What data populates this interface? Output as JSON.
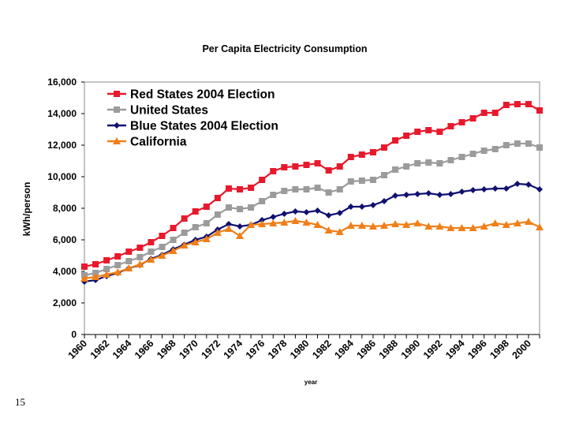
{
  "page": {
    "slide_number": "15"
  },
  "chart_data": {
    "type": "line",
    "title": "Per Capita Electricity Consumption",
    "xlabel": "year",
    "ylabel": "kWh/person",
    "xlim": [
      1960,
      2001
    ],
    "ylim": [
      0,
      16000
    ],
    "y_ticks": [
      0,
      2000,
      4000,
      6000,
      8000,
      10000,
      12000,
      14000,
      16000
    ],
    "y_tick_labels": [
      "0",
      "2,000",
      "4,000",
      "6,000",
      "8,000",
      "10,000",
      "12,000",
      "14,000",
      "16,000"
    ],
    "x_ticks": [
      1960,
      1962,
      1964,
      1966,
      1968,
      1970,
      1972,
      1974,
      1976,
      1978,
      1980,
      1982,
      1984,
      1986,
      1988,
      1990,
      1992,
      1994,
      1996,
      1998,
      2000
    ],
    "x_tick_labels": [
      "1960",
      "1962",
      "1964",
      "1966",
      "1968",
      "1970",
      "1972",
      "1974",
      "1976",
      "1978",
      "1980",
      "1982",
      "1984",
      "1986",
      "1988",
      "1990",
      "1992",
      "1994",
      "1996",
      "1998",
      "2000"
    ],
    "legend_position": "top-left",
    "x": [
      1960,
      1961,
      1962,
      1963,
      1964,
      1965,
      1966,
      1967,
      1968,
      1969,
      1970,
      1971,
      1972,
      1973,
      1974,
      1975,
      1976,
      1977,
      1978,
      1979,
      1980,
      1981,
      1982,
      1983,
      1984,
      1985,
      1986,
      1987,
      1988,
      1989,
      1990,
      1991,
      1992,
      1993,
      1994,
      1995,
      1996,
      1997,
      1998,
      1999,
      2000,
      2001
    ],
    "series": [
      {
        "name": "Red States 2004 Election",
        "color": "#e8192c",
        "marker": "square",
        "values": [
          4300,
          4450,
          4700,
          4950,
          5250,
          5500,
          5850,
          6250,
          6750,
          7350,
          7800,
          8100,
          8650,
          9250,
          9200,
          9300,
          9800,
          10350,
          10600,
          10650,
          10750,
          10850,
          10400,
          10650,
          11250,
          11400,
          11550,
          11850,
          12300,
          12600,
          12850,
          12950,
          12850,
          13200,
          13450,
          13700,
          14050,
          14050,
          14550,
          14600,
          14600,
          14200
        ]
      },
      {
        "name": "United States",
        "color": "#9b9b9b",
        "marker": "square",
        "values": [
          3750,
          3900,
          4150,
          4400,
          4650,
          4900,
          5250,
          5550,
          6000,
          6450,
          6800,
          7050,
          7600,
          8050,
          7950,
          8050,
          8450,
          8850,
          9100,
          9200,
          9200,
          9300,
          9000,
          9200,
          9700,
          9750,
          9800,
          10100,
          10450,
          10650,
          10850,
          10900,
          10850,
          11050,
          11250,
          11450,
          11650,
          11750,
          12000,
          12100,
          12100,
          11850
        ]
      },
      {
        "name": "Blue States 2004 Election",
        "color": "#101070",
        "marker": "diamond",
        "values": [
          3350,
          3450,
          3700,
          3900,
          4200,
          4400,
          4800,
          5050,
          5400,
          5700,
          6000,
          6200,
          6650,
          7000,
          6850,
          6950,
          7250,
          7450,
          7650,
          7800,
          7750,
          7850,
          7550,
          7700,
          8100,
          8100,
          8200,
          8450,
          8800,
          8850,
          8900,
          8950,
          8850,
          8900,
          9050,
          9150,
          9200,
          9250,
          9250,
          9550,
          9500,
          9200
        ]
      },
      {
        "name": "California",
        "color": "#f07f19",
        "marker": "triangle",
        "values": [
          3550,
          3650,
          3800,
          3950,
          4200,
          4450,
          4750,
          5000,
          5300,
          5650,
          5850,
          6050,
          6450,
          6700,
          6250,
          6950,
          7000,
          7050,
          7100,
          7200,
          7100,
          6950,
          6600,
          6500,
          6900,
          6900,
          6850,
          6900,
          7000,
          6950,
          7050,
          6850,
          6850,
          6750,
          6750,
          6750,
          6850,
          7050,
          6950,
          7050,
          7150,
          6800
        ]
      }
    ]
  }
}
